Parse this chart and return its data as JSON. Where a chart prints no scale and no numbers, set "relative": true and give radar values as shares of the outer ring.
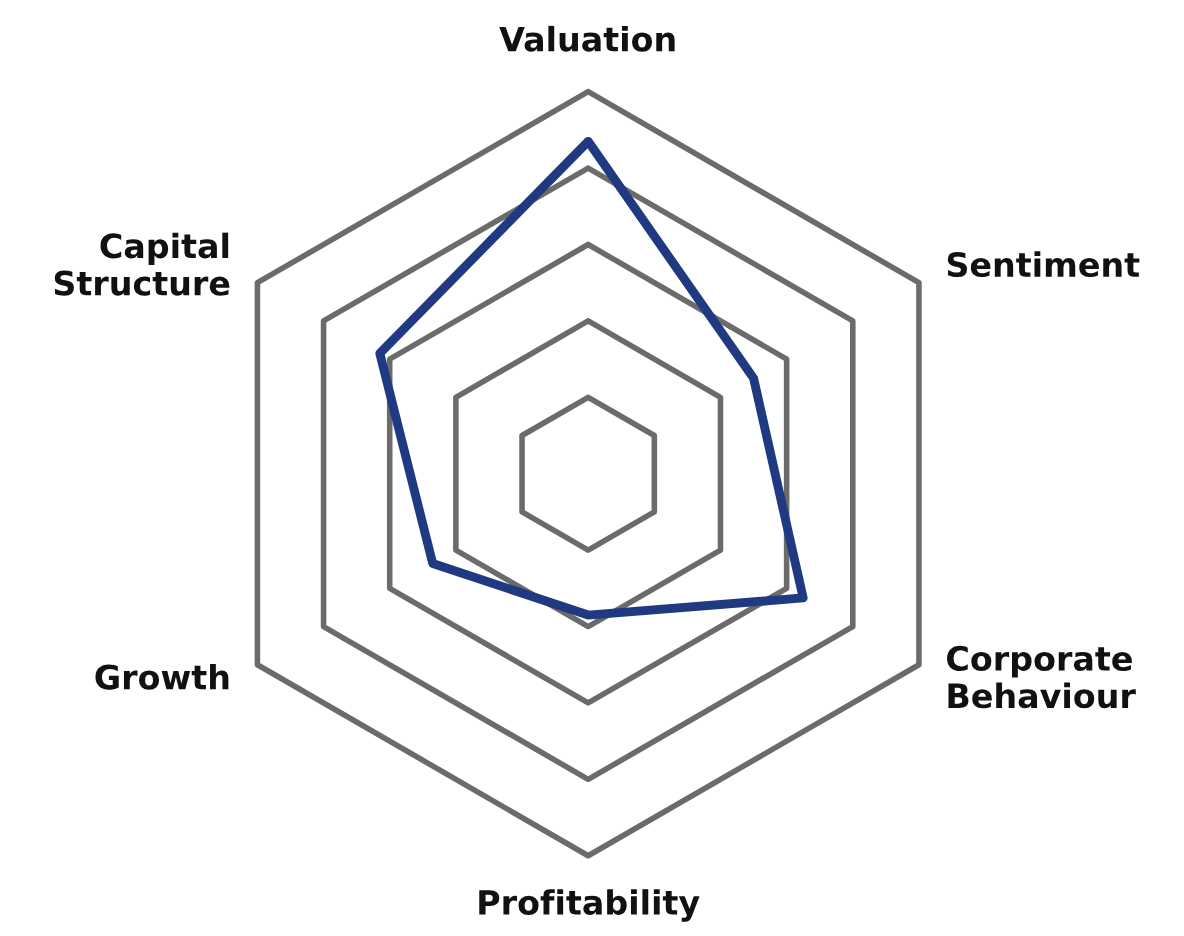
{
  "chart_data": {
    "type": "radar",
    "relative": true,
    "grid": true,
    "categories": [
      "Valuation",
      "Sentiment",
      "Corporate\nBehaviour",
      "Profitability",
      "Growth",
      "Capital\nStructure"
    ],
    "series": [
      {
        "color": "#1f3a80",
        "values": [
          0.87,
          0.5,
          0.65,
          0.37,
          0.47,
          0.63
        ]
      }
    ]
  }
}
